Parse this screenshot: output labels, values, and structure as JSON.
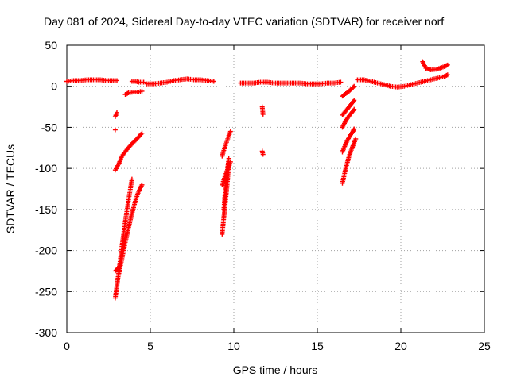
{
  "chart_data": {
    "type": "scatter",
    "title": "Day 081 of 2024, Sidereal Day-to-day VTEC variation (SDTVAR) for receiver norf",
    "xlabel": "GPS time / hours",
    "ylabel": "SDTVAR / TECUs",
    "xlim": [
      0,
      25
    ],
    "ylim": [
      -300,
      50
    ],
    "xticks": [
      0,
      5,
      10,
      15,
      20,
      25
    ],
    "xtick_labels": [
      "0",
      "5",
      "10",
      "15",
      "20",
      "25"
    ],
    "yticks": [
      50,
      0,
      -50,
      -100,
      -150,
      -200,
      -250,
      -300
    ],
    "ytick_labels": [
      "50",
      "0",
      "-50",
      "-100",
      "-150",
      "-200",
      "-250",
      "-300"
    ],
    "grid": true,
    "legend": "none",
    "marker": "plus",
    "color": "#ff0000",
    "series": [
      {
        "segments": [
          {
            "x": [
              0.0,
              0.4,
              0.8,
              1.2,
              1.6,
              2.0,
              2.4,
              2.8,
              3.0
            ],
            "y": [
              6,
              7,
              7,
              8,
              8,
              8,
              7,
              7,
              7
            ]
          },
          {
            "x": [
              3.9,
              4.1,
              4.3,
              4.6
            ],
            "y": [
              6,
              6,
              5,
              5
            ]
          },
          {
            "x": [
              4.8,
              5.2,
              5.6,
              6.0,
              6.4,
              6.8,
              7.2,
              7.6,
              8.0,
              8.4,
              8.8
            ],
            "y": [
              3,
              3,
              4,
              5,
              7,
              8,
              9,
              8,
              8,
              7,
              6
            ]
          },
          {
            "x": [
              10.4,
              10.8,
              11.2,
              11.6,
              12.0,
              12.4,
              12.8,
              13.2,
              13.6,
              14.0,
              14.4,
              14.8,
              15.2,
              15.6,
              16.0,
              16.4
            ],
            "y": [
              4,
              4,
              4,
              5,
              5,
              4,
              4,
              4,
              4,
              4,
              3,
              3,
              3,
              4,
              4,
              5
            ]
          },
          {
            "x": [
              17.4,
              17.8,
              18.2,
              18.6,
              19.0,
              19.4,
              19.8,
              20.2,
              20.6,
              21.0,
              21.4,
              21.8,
              22.2,
              22.6,
              22.8
            ],
            "y": [
              8,
              8,
              6,
              4,
              2,
              0,
              -1,
              0,
              2,
              4,
              6,
              8,
              10,
              12,
              14
            ]
          },
          {
            "x": [
              21.3,
              21.5,
              21.8,
              22.2,
              22.6,
              22.8
            ],
            "y": [
              30,
              22,
              20,
              21,
              24,
              26
            ]
          },
          {
            "x": [
              3.5,
              3.7,
              4.0,
              4.3,
              4.5
            ],
            "y": [
              -10,
              -8,
              -7,
              -7,
              -6
            ]
          },
          {
            "x": [
              2.9,
              3.0
            ],
            "y": [
              -37,
              -32
            ]
          },
          {
            "x": [
              2.9
            ],
            "y": [
              -53
            ]
          },
          {
            "x": [
              2.9,
              3.1,
              3.3,
              3.6,
              3.9,
              4.2,
              4.5
            ],
            "y": [
              -102,
              -95,
              -85,
              -77,
              -70,
              -64,
              -57
            ]
          },
          {
            "x": [
              2.9,
              3.1,
              3.3,
              3.5,
              3.7,
              3.9
            ],
            "y": [
              -258,
              -228,
              -195,
              -165,
              -138,
              -113
            ]
          },
          {
            "x": [
              2.9,
              3.05,
              3.2
            ],
            "y": [
              -225,
              -222,
              -218
            ]
          },
          {
            "x": [
              3.1,
              3.3,
              3.5,
              3.7,
              3.9,
              4.1,
              4.3,
              4.5
            ],
            "y": [
              -230,
              -210,
              -190,
              -172,
              -155,
              -140,
              -128,
              -120
            ]
          },
          {
            "x": [
              9.3,
              9.4,
              9.5,
              9.6,
              9.7,
              9.8
            ],
            "y": [
              -85,
              -78,
              -72,
              -66,
              -60,
              -55
            ]
          },
          {
            "x": [
              9.3,
              9.4,
              9.5,
              9.6,
              9.7
            ],
            "y": [
              -180,
              -160,
              -140,
              -120,
              -95
            ]
          },
          {
            "x": [
              9.4,
              9.5,
              9.6,
              9.7
            ],
            "y": [
              -150,
              -125,
              -105,
              -88
            ]
          },
          {
            "x": [
              9.3,
              9.5,
              9.7,
              9.8
            ],
            "y": [
              -120,
              -108,
              -98,
              -92
            ]
          },
          {
            "x": [
              11.7,
              11.75
            ],
            "y": [
              -25,
              -34
            ]
          },
          {
            "x": [
              11.7,
              11.75
            ],
            "y": [
              -79,
              -83
            ]
          },
          {
            "x": [
              16.5,
              16.7,
              16.9,
              17.1,
              17.2
            ],
            "y": [
              -12,
              -9,
              -6,
              -2,
              0
            ]
          },
          {
            "x": [
              16.5,
              16.7,
              16.9,
              17.1,
              17.2
            ],
            "y": [
              -35,
              -30,
              -25,
              -20,
              -17
            ]
          },
          {
            "x": [
              16.5,
              16.7,
              16.9,
              17.1,
              17.2
            ],
            "y": [
              -50,
              -42,
              -36,
              -31,
              -28
            ]
          },
          {
            "x": [
              16.5,
              16.7,
              16.9,
              17.1,
              17.2
            ],
            "y": [
              -80,
              -70,
              -62,
              -56,
              -52
            ]
          },
          {
            "x": [
              16.5,
              16.7,
              16.9,
              17.1,
              17.3
            ],
            "y": [
              -118,
              -100,
              -85,
              -74,
              -64
            ]
          }
        ]
      }
    ]
  }
}
